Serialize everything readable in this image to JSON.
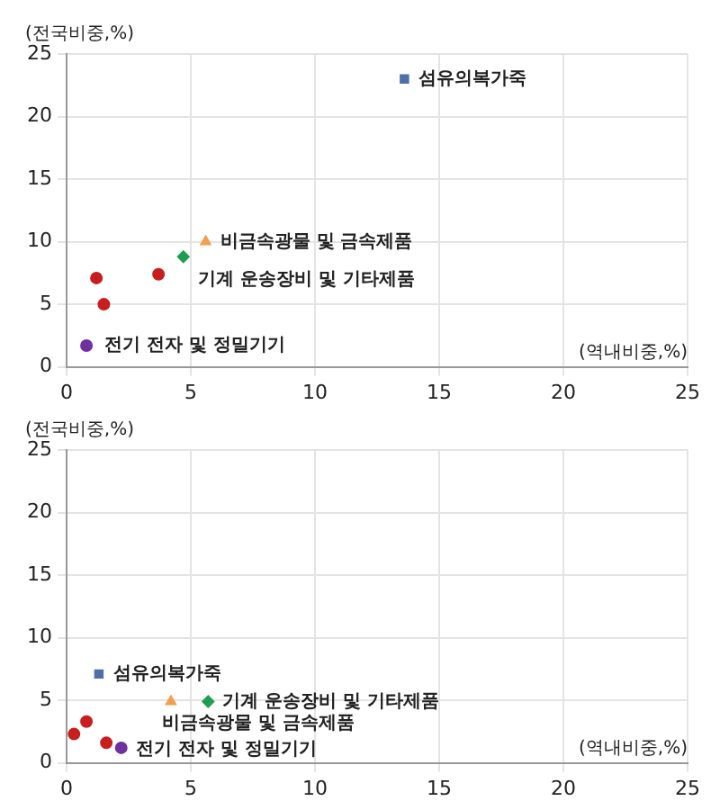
{
  "chart_data": [
    {
      "type": "scatter",
      "ylabel": "(전국비중,%)",
      "xlabel": "(역내비중,%)",
      "xlim": [
        0,
        25
      ],
      "ylim": [
        0,
        25
      ],
      "xticks": [
        0,
        5,
        10,
        15,
        20,
        25
      ],
      "yticks": [
        0,
        5,
        10,
        15,
        20,
        25
      ],
      "grid": true,
      "legend": false,
      "series": [
        {
          "name": "섬유의복가죽",
          "color": "#4f6fa8",
          "marker": "square",
          "x": [
            13.6
          ],
          "values": [
            23.0
          ]
        },
        {
          "name": "비금속광물 및 금속제품",
          "color": "#f0a050",
          "marker": "triangle",
          "x": [
            5.6
          ],
          "values": [
            10.0
          ]
        },
        {
          "name": "기계 운송장비 및 기타제품",
          "color": "#1e9e50",
          "marker": "diamond",
          "x": [
            4.7
          ],
          "values": [
            8.8
          ]
        },
        {
          "color": "#c81e1e",
          "marker": "circle",
          "x": [
            1.2,
            1.5,
            3.7
          ],
          "values": [
            7.1,
            5.0,
            7.4
          ]
        },
        {
          "name": "전기 전자 및 정밀기기",
          "color": "#7030a0",
          "marker": "circle",
          "x": [
            0.8
          ],
          "values": [
            1.7
          ]
        }
      ]
    },
    {
      "type": "scatter",
      "ylabel": "(전국비중,%)",
      "xlabel": "(역내비중,%)",
      "xlim": [
        0,
        25
      ],
      "ylim": [
        0,
        25
      ],
      "xticks": [
        0,
        5,
        10,
        15,
        20,
        25
      ],
      "yticks": [
        0,
        5,
        10,
        15,
        20,
        25
      ],
      "grid": true,
      "legend": false,
      "series": [
        {
          "name": "섬유의복가죽",
          "color": "#4f6fa8",
          "marker": "square",
          "x": [
            1.3
          ],
          "values": [
            7.1
          ]
        },
        {
          "name": "비금속광물 및 금속제품",
          "color": "#f0a050",
          "marker": "triangle",
          "x": [
            4.2
          ],
          "values": [
            4.9
          ]
        },
        {
          "name": "기계 운송장비 및 기타제품",
          "color": "#1e9e50",
          "marker": "diamond",
          "x": [
            5.7
          ],
          "values": [
            4.9
          ]
        },
        {
          "color": "#c81e1e",
          "marker": "circle",
          "x": [
            0.3,
            0.8,
            1.6
          ],
          "values": [
            2.3,
            3.3,
            1.6
          ]
        },
        {
          "name": "전기 전자 및 정밀기기",
          "color": "#7030a0",
          "marker": "circle",
          "x": [
            2.2
          ],
          "values": [
            1.2
          ]
        }
      ]
    }
  ]
}
